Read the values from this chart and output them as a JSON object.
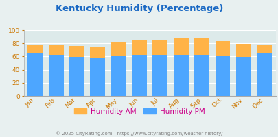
{
  "title": "Kentucky Humidity (Percentage)",
  "months": [
    "Jan",
    "Feb",
    "Mar",
    "Apr",
    "May",
    "Jun",
    "Jul",
    "Aug",
    "Sep",
    "Oct",
    "Nov",
    "Dec"
  ],
  "humidity_pm": [
    66,
    63,
    59,
    57,
    60,
    61,
    62,
    61,
    61,
    60,
    59,
    66
  ],
  "humidity_am": [
    78,
    77,
    76,
    75,
    82,
    84,
    85,
    88,
    88,
    83,
    79,
    78
  ],
  "color_pm": "#4da6ff",
  "color_am": "#ffb347",
  "bg_color": "#e8f0f0",
  "plot_bg": "#ddeaea",
  "ylim": [
    0,
    100
  ],
  "yticks": [
    0,
    20,
    40,
    60,
    80,
    100
  ],
  "footer": "© 2025 CityRating.com - https://www.cityrating.com/weather-history/",
  "title_color": "#1a69c4",
  "tick_color": "#cc7700",
  "legend_label_color": "#cc0088",
  "legend_am_label": "Humidity AM",
  "legend_pm_label": "Humidity PM",
  "title_fontsize": 9.5,
  "tick_fontsize": 6.5,
  "legend_fontsize": 7.5,
  "footer_fontsize": 5.0
}
